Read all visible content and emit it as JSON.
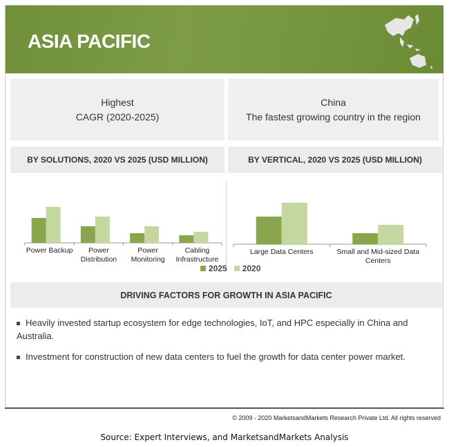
{
  "banner": {
    "title": "ASIA PACIFIC",
    "icon": "asia-pacific-map-icon"
  },
  "highlights": [
    {
      "line1": "Highest",
      "line2": "CAGR (2020-2025)"
    },
    {
      "line1": "China",
      "line2": "The fastest growing country in the region"
    }
  ],
  "colors": {
    "series_2025": "#8aa64c",
    "series_2020": "#c3d79e",
    "banner": "#76963f"
  },
  "chart_data": [
    {
      "type": "bar",
      "title": "BY SOLUTIONS, 2020 VS 2025 (USD MILLION)",
      "categories": [
        "Power Backup",
        "Power Distribution",
        "Power Monitoring",
        "Cabling Infrastructure"
      ],
      "series": [
        {
          "name": "2025",
          "values": [
            36,
            24,
            14,
            11
          ]
        },
        {
          "name": "2020",
          "values": [
            52,
            38,
            24,
            16
          ]
        }
      ],
      "legend": "bottom",
      "grid": false
    },
    {
      "type": "bar",
      "title": "BY VERTICAL, 2020 VS 2025 (USD MILLION)",
      "categories": [
        "Large Data Centers",
        "Small and Mid-sized Data Centers"
      ],
      "series": [
        {
          "name": "2025",
          "values": [
            40,
            16
          ]
        },
        {
          "name": "2020",
          "values": [
            60,
            28
          ]
        }
      ],
      "legend": "none",
      "grid": false
    }
  ],
  "drivers": {
    "title": "DRIVING FACTORS FOR GROWTH IN ASIA PACIFIC",
    "items": [
      "Heavily invested startup ecosystem for edge technologies, IoT, and HPC especially in China and Australia.",
      "Investment for construction of new data centers to fuel the growth for data center power market."
    ]
  },
  "footer": {
    "copyright": "© 2009 - 2020 MarketsandMarkets Research Private Ltd. All rights reserved",
    "source": "Source: Expert Interviews, and MarketsandMarkets Analysis"
  }
}
